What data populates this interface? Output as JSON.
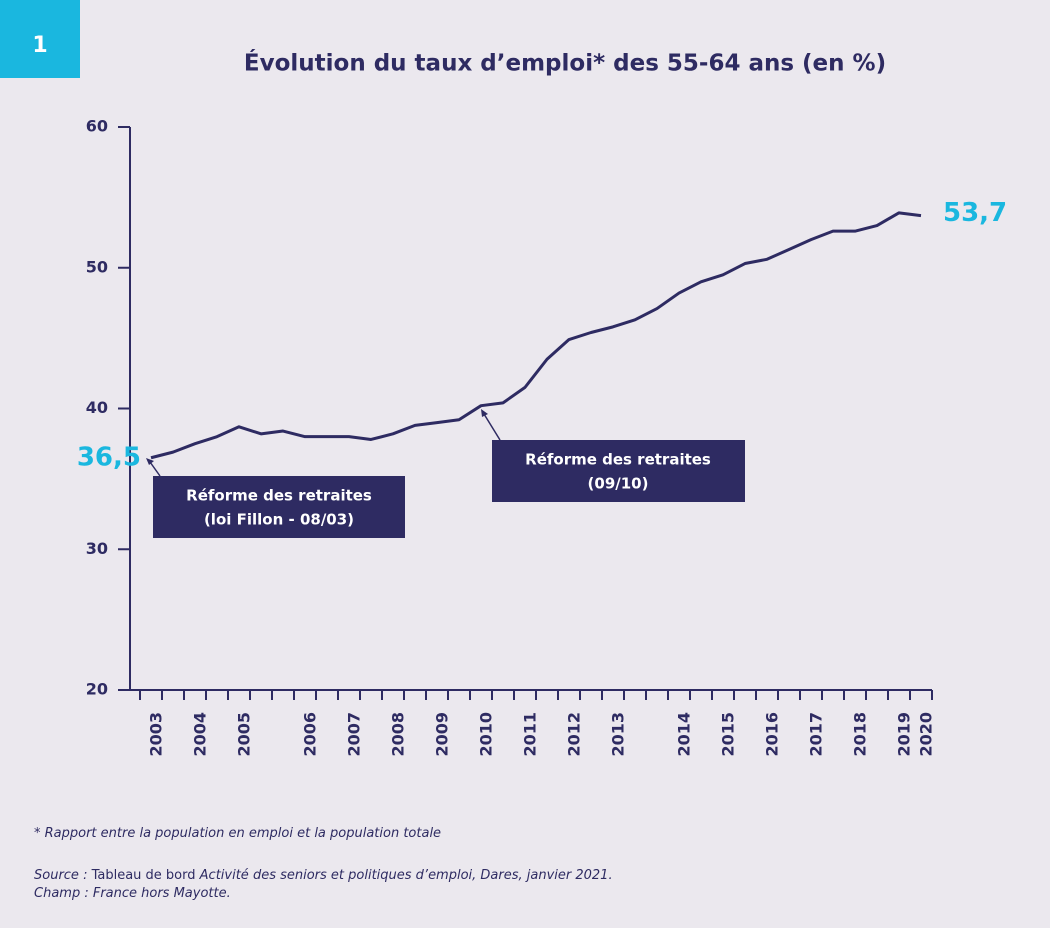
{
  "badge": "1",
  "chart_data": {
    "type": "line",
    "title": "Évolution du taux d’emploi* des 55-64 ans (en %)",
    "categories": [
      "2003",
      null,
      "2004",
      null,
      "2005",
      null,
      null,
      "2006",
      null,
      "2007",
      null,
      "2008",
      null,
      "2009",
      null,
      "2010",
      null,
      "2011",
      null,
      "2012",
      null,
      "2013",
      null,
      null,
      "2014",
      null,
      "2015",
      null,
      "2016",
      null,
      "2017",
      null,
      "2018",
      null,
      "2019",
      "2020"
    ],
    "series": [
      {
        "name": "Taux d’emploi des 55-64 ans",
        "color": "#2e2b62",
        "values": [
          36.5,
          36.9,
          37.5,
          38.0,
          38.7,
          38.2,
          38.4,
          38.0,
          38.0,
          38.0,
          37.8,
          38.2,
          38.8,
          39.0,
          39.2,
          40.2,
          40.4,
          41.5,
          43.5,
          44.9,
          45.4,
          45.8,
          46.3,
          47.1,
          48.2,
          49.0,
          49.5,
          50.3,
          50.6,
          51.3,
          52.0,
          52.6,
          52.6,
          53.0,
          53.9,
          53.7
        ],
        "value_labels": [
          "36,5",
          null,
          null,
          null,
          null,
          null,
          null,
          null,
          null,
          null,
          null,
          null,
          null,
          null,
          null,
          null,
          null,
          null,
          null,
          null,
          null,
          null,
          null,
          null,
          null,
          null,
          null,
          null,
          null,
          null,
          null,
          null,
          null,
          null,
          null,
          "53,7"
        ],
        "value_label_color": "#1ab7df"
      }
    ],
    "ylim": [
      20,
      60
    ],
    "yticks": [
      20,
      30,
      40,
      50,
      60
    ],
    "annotations": [
      {
        "lines": [
          "Réforme des retraites",
          "(loi Fillon - 08/03)"
        ]
      },
      {
        "lines": [
          "Réforme des retraites",
          "(09/10)"
        ]
      }
    ]
  },
  "notes": {
    "definition": "* Rapport entre la population en emploi et la population totale",
    "source_label": "Source :",
    "source_plain": "Tableau de bord",
    "source_rest": "Activité des seniors et politiques d’emploi, Dares, janvier 2021.",
    "scope": "Champ : France hors Mayotte."
  }
}
